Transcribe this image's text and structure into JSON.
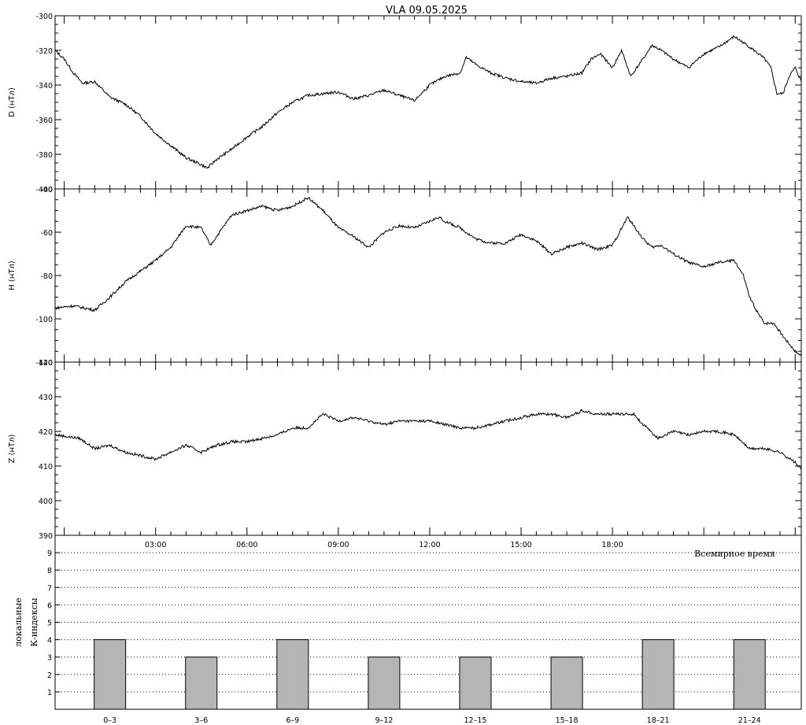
{
  "title": {
    "station": "VLA",
    "date": "09.05.2025"
  },
  "time_axis": {
    "tick_labels": [
      "03:00",
      "06:00",
      "09:00",
      "12:00",
      "15:00",
      "18:00"
    ],
    "caption": "Всемирное время"
  },
  "colors": {
    "trace": "#000000",
    "bar_fill": "#b5b5b5",
    "grid": "#000000"
  },
  "chart_data": [
    {
      "type": "line",
      "panel": "D",
      "ylabel": "D (нТл)",
      "ylim": [
        -400,
        -300
      ],
      "yticks": [
        "-300",
        "-320",
        "-340",
        "-360",
        "-380",
        "-400"
      ],
      "ytick_values": [
        -300,
        -320,
        -340,
        -360,
        -380,
        -400
      ],
      "x_unit": "hours UT",
      "xlim": [
        -0.3,
        24.2
      ],
      "series": [
        {
          "x": [
            -0.3,
            0.0,
            0.3,
            0.6,
            1.0,
            1.5,
            2.0,
            2.5,
            3.0,
            3.5,
            4.0,
            4.5,
            4.7,
            5.0,
            5.5,
            6.0,
            6.5,
            7.0,
            7.5,
            8.0,
            8.5,
            9.0,
            9.5,
            10.0,
            10.5,
            11.0,
            11.5,
            12.0,
            12.5,
            13.0,
            13.2,
            13.5,
            14.0,
            14.5,
            15.0,
            15.5,
            16.0,
            16.5,
            17.0,
            17.3,
            17.6,
            18.0,
            18.3,
            18.6,
            19.0,
            19.3,
            19.6,
            20.0,
            20.5,
            21.0,
            21.5,
            22.0,
            22.5,
            22.8,
            23.0,
            23.2,
            23.4,
            23.6,
            23.8,
            24.0,
            24.2
          ],
          "y": [
            -320,
            -325,
            -333,
            -339,
            -338,
            -347,
            -351,
            -358,
            -368,
            -375,
            -382,
            -386,
            -388,
            -383,
            -377,
            -370,
            -364,
            -356,
            -350,
            -346,
            -345,
            -344,
            -348,
            -346,
            -343,
            -346,
            -349,
            -340,
            -335,
            -333,
            -324,
            -328,
            -333,
            -336,
            -338,
            -339,
            -336,
            -335,
            -333,
            -325,
            -322,
            -330,
            -320,
            -335,
            -325,
            -317,
            -320,
            -325,
            -330,
            -322,
            -318,
            -312,
            -318,
            -322,
            -325,
            -330,
            -345,
            -345,
            -335,
            -330,
            -338
          ]
        }
      ]
    },
    {
      "type": "line",
      "panel": "H",
      "ylabel": "H (нТл)",
      "ylim": [
        -120,
        -40
      ],
      "yticks": [
        "-40",
        "-60",
        "-80",
        "-100",
        "-120"
      ],
      "ytick_values": [
        -40,
        -60,
        -80,
        -100,
        -120
      ],
      "x_unit": "hours UT",
      "xlim": [
        -0.3,
        24.2
      ],
      "series": [
        {
          "x": [
            -0.3,
            0.3,
            1.0,
            1.5,
            2.0,
            2.5,
            3.0,
            3.5,
            4.0,
            4.5,
            4.8,
            5.0,
            5.5,
            6.0,
            6.5,
            7.0,
            7.5,
            8.0,
            8.5,
            9.0,
            9.5,
            10.0,
            10.5,
            11.0,
            11.5,
            12.0,
            12.3,
            12.5,
            13.0,
            13.5,
            14.0,
            14.5,
            15.0,
            15.5,
            16.0,
            16.5,
            17.0,
            17.5,
            18.0,
            18.5,
            19.0,
            19.3,
            19.6,
            20.0,
            20.5,
            21.0,
            21.5,
            22.0,
            22.3,
            22.5,
            22.8,
            23.0,
            23.3,
            23.6,
            24.0,
            24.2
          ],
          "y": [
            -95,
            -94,
            -96,
            -90,
            -83,
            -78,
            -73,
            -67,
            -57,
            -58,
            -66,
            -62,
            -52,
            -50,
            -48,
            -50,
            -48,
            -44,
            -50,
            -58,
            -62,
            -67,
            -60,
            -57,
            -58,
            -55,
            -53,
            -55,
            -58,
            -63,
            -65,
            -65,
            -61,
            -64,
            -70,
            -67,
            -65,
            -68,
            -66,
            -53,
            -63,
            -67,
            -66,
            -70,
            -74,
            -76,
            -74,
            -73,
            -80,
            -90,
            -98,
            -102,
            -102,
            -108,
            -115,
            -117
          ]
        }
      ]
    },
    {
      "type": "line",
      "panel": "Z",
      "ylabel": "Z (нТл)",
      "ylim": [
        390,
        440
      ],
      "yticks": [
        "440",
        "430",
        "420",
        "410",
        "400",
        "390"
      ],
      "ytick_values": [
        440,
        430,
        420,
        410,
        400,
        390
      ],
      "x_unit": "hours UT",
      "xlim": [
        -0.3,
        24.2
      ],
      "series": [
        {
          "x": [
            -0.3,
            0.5,
            1.0,
            1.5,
            2.0,
            2.5,
            3.0,
            3.5,
            4.0,
            4.5,
            5.0,
            5.5,
            6.0,
            6.5,
            7.0,
            7.5,
            8.0,
            8.5,
            9.0,
            9.5,
            10.0,
            10.5,
            11.0,
            11.5,
            12.0,
            12.5,
            13.0,
            13.5,
            14.0,
            14.5,
            15.0,
            15.5,
            16.0,
            16.5,
            17.0,
            17.5,
            18.0,
            18.5,
            18.7,
            19.0,
            19.5,
            20.0,
            20.5,
            21.0,
            21.5,
            22.0,
            22.5,
            23.0,
            23.5,
            24.0,
            24.2
          ],
          "y": [
            419,
            418,
            415,
            416,
            414,
            413,
            412,
            414,
            416,
            414,
            416,
            417,
            417,
            418,
            419,
            421,
            421,
            425,
            423,
            424,
            423,
            422,
            423,
            423,
            423,
            422,
            421,
            421,
            422,
            423,
            424,
            425,
            425,
            424,
            426,
            425,
            425,
            425,
            425,
            422,
            418,
            420,
            419,
            420,
            420,
            419,
            415,
            415,
            414,
            411,
            409
          ]
        }
      ]
    },
    {
      "type": "bar",
      "panel": "K-index",
      "ylabel_lines": [
        "локальные",
        "К-индексы"
      ],
      "ylim": [
        0,
        10
      ],
      "yticks": [
        "1",
        "2",
        "3",
        "4",
        "5",
        "6",
        "7",
        "8",
        "9"
      ],
      "ytick_values": [
        1,
        2,
        3,
        4,
        5,
        6,
        7,
        8,
        9
      ],
      "grid": true,
      "categories": [
        "0–3",
        "3–6",
        "6–9",
        "9–12",
        "12–15",
        "15–18",
        "18–21",
        "21–24"
      ],
      "values": [
        4,
        3,
        4,
        3,
        3,
        3,
        4,
        4
      ]
    }
  ]
}
